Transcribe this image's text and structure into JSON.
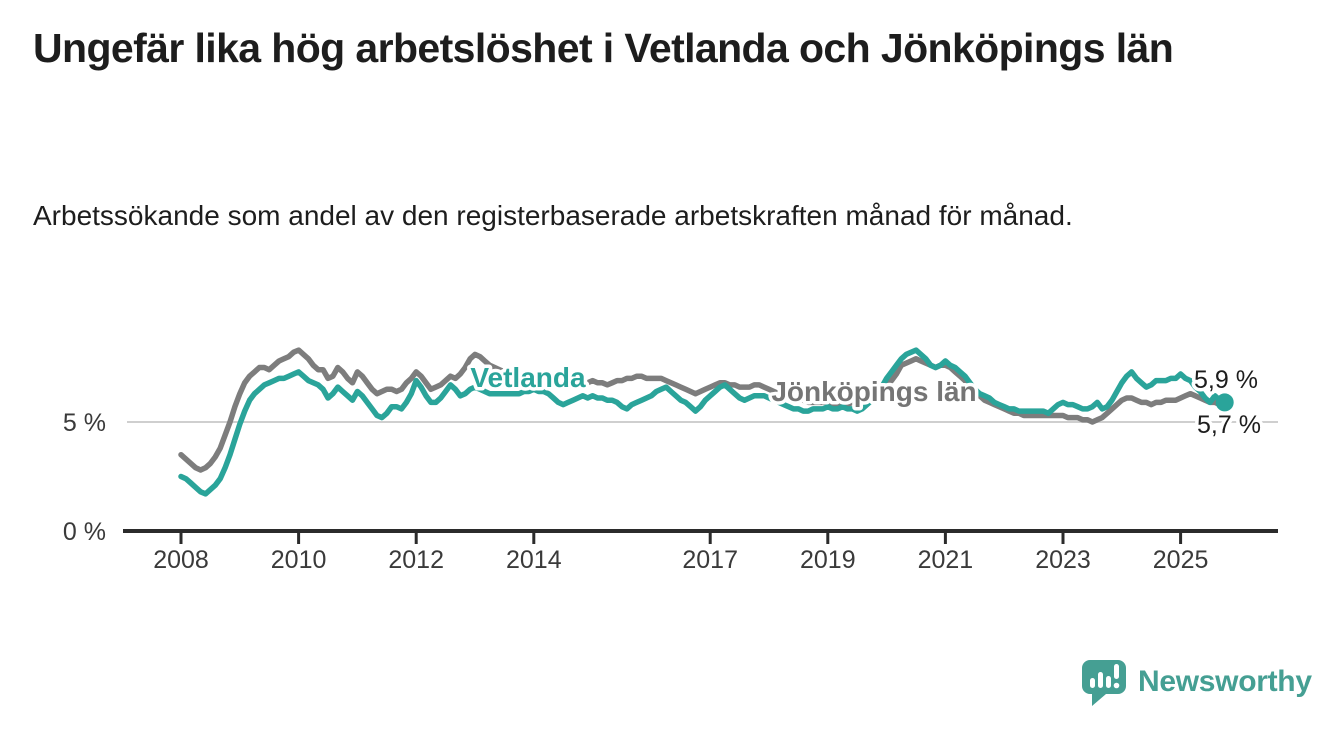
{
  "header": {
    "title": "Ungefär lika hög arbetslöshet i Vetlanda och Jönköpings län",
    "subtitle": "Arbetssökande som andel av den registerbaserade arbetskraften månad för månad."
  },
  "chart_data": {
    "type": "line",
    "frequency": "monthly",
    "x_start": "2008-01",
    "x_end": "2025-10",
    "ylim": [
      0,
      9.2
    ],
    "grid": "single horizontal gridline at 5 %",
    "legend_position": "inline labels on lines",
    "x_ticks": [
      {
        "label": "2008",
        "month_index": 0
      },
      {
        "label": "2010",
        "month_index": 24
      },
      {
        "label": "2012",
        "month_index": 48
      },
      {
        "label": "2014",
        "month_index": 72
      },
      {
        "label": "2017",
        "month_index": 108
      },
      {
        "label": "2019",
        "month_index": 132
      },
      {
        "label": "2021",
        "month_index": 156
      },
      {
        "label": "2023",
        "month_index": 180
      },
      {
        "label": "2025",
        "month_index": 204
      }
    ],
    "y_axis": {
      "ticks": [
        {
          "label": "0 %",
          "value": 0
        },
        {
          "label": "5 %",
          "value": 5
        }
      ],
      "gridline_value": 5
    },
    "series": [
      {
        "name": "Jönköpings län",
        "color": "#7d7d7d",
        "label_color": "#757575",
        "end_label": "5,7 %",
        "end_dot": false,
        "values": [
          3.5,
          3.3,
          3.1,
          2.9,
          2.8,
          2.9,
          3.1,
          3.4,
          3.8,
          4.4,
          5.0,
          5.7,
          6.3,
          6.8,
          7.1,
          7.3,
          7.5,
          7.5,
          7.4,
          7.6,
          7.8,
          7.9,
          8.0,
          8.2,
          8.3,
          8.1,
          7.9,
          7.6,
          7.4,
          7.4,
          7.0,
          7.1,
          7.5,
          7.3,
          7.0,
          6.8,
          7.3,
          7.1,
          6.8,
          6.5,
          6.3,
          6.4,
          6.5,
          6.5,
          6.4,
          6.5,
          6.8,
          7.0,
          7.3,
          7.1,
          6.8,
          6.5,
          6.6,
          6.7,
          6.9,
          7.1,
          7.0,
          7.2,
          7.5,
          7.9,
          8.1,
          8.0,
          7.8,
          7.6,
          7.5,
          7.4,
          7.3,
          7.3,
          7.2,
          7.2,
          7.1,
          7.1,
          7.2,
          7.1,
          7.0,
          6.9,
          6.8,
          6.8,
          6.7,
          6.8,
          6.9,
          6.9,
          6.8,
          6.8,
          6.9,
          6.8,
          6.8,
          6.7,
          6.8,
          6.9,
          6.9,
          7.0,
          7.0,
          7.1,
          7.1,
          7.0,
          7.0,
          7.0,
          7.0,
          6.9,
          6.8,
          6.7,
          6.6,
          6.5,
          6.4,
          6.3,
          6.4,
          6.5,
          6.6,
          6.7,
          6.8,
          6.8,
          6.7,
          6.7,
          6.6,
          6.6,
          6.6,
          6.7,
          6.7,
          6.6,
          6.5,
          6.4,
          6.3,
          6.2,
          6.1,
          6.1,
          6.0,
          6.0,
          5.9,
          5.9,
          5.9,
          5.9,
          5.9,
          5.8,
          5.8,
          5.8,
          5.8,
          5.9,
          5.9,
          6.0,
          6.1,
          6.2,
          6.3,
          6.5,
          6.7,
          6.9,
          7.2,
          7.6,
          7.7,
          7.8,
          7.9,
          7.8,
          7.7,
          7.6,
          7.5,
          7.6,
          7.6,
          7.5,
          7.3,
          7.1,
          6.9,
          6.6,
          6.4,
          6.2,
          6.0,
          5.9,
          5.8,
          5.7,
          5.6,
          5.5,
          5.4,
          5.4,
          5.3,
          5.3,
          5.3,
          5.3,
          5.3,
          5.3,
          5.3,
          5.3,
          5.3,
          5.2,
          5.2,
          5.2,
          5.1,
          5.1,
          5.0,
          5.1,
          5.2,
          5.4,
          5.6,
          5.8,
          6.0,
          6.1,
          6.1,
          6.0,
          5.9,
          5.9,
          5.8,
          5.9,
          5.9,
          6.0,
          6.0,
          6.0,
          6.1,
          6.2,
          6.3,
          6.2,
          6.1,
          6.0,
          5.9,
          5.9,
          5.8,
          5.7
        ]
      },
      {
        "name": "Vetlanda",
        "color": "#2aa49a",
        "label_color": "#2aa49a",
        "end_label": "5,9 %",
        "end_dot": true,
        "values": [
          2.5,
          2.4,
          2.2,
          2.0,
          1.8,
          1.7,
          1.9,
          2.1,
          2.4,
          2.9,
          3.5,
          4.2,
          4.9,
          5.5,
          6.0,
          6.3,
          6.5,
          6.7,
          6.8,
          6.9,
          7.0,
          7.0,
          7.1,
          7.2,
          7.3,
          7.1,
          6.9,
          6.8,
          6.7,
          6.5,
          6.1,
          6.3,
          6.6,
          6.4,
          6.2,
          6.0,
          6.4,
          6.2,
          5.9,
          5.6,
          5.3,
          5.2,
          5.4,
          5.7,
          5.7,
          5.6,
          5.9,
          6.3,
          6.9,
          6.6,
          6.2,
          5.9,
          5.9,
          6.1,
          6.4,
          6.7,
          6.5,
          6.2,
          6.3,
          6.5,
          6.6,
          6.5,
          6.4,
          6.3,
          6.3,
          6.3,
          6.3,
          6.3,
          6.3,
          6.3,
          6.4,
          6.4,
          6.5,
          6.4,
          6.4,
          6.3,
          6.1,
          5.9,
          5.8,
          5.9,
          6.0,
          6.1,
          6.2,
          6.1,
          6.2,
          6.1,
          6.1,
          6.0,
          6.0,
          5.9,
          5.7,
          5.6,
          5.8,
          5.9,
          6.0,
          6.1,
          6.2,
          6.4,
          6.5,
          6.6,
          6.4,
          6.2,
          6.0,
          5.9,
          5.7,
          5.5,
          5.7,
          6.0,
          6.2,
          6.4,
          6.6,
          6.7,
          6.5,
          6.3,
          6.1,
          6.0,
          6.1,
          6.2,
          6.2,
          6.2,
          6.1,
          6.0,
          5.9,
          5.8,
          5.7,
          5.6,
          5.6,
          5.5,
          5.5,
          5.6,
          5.6,
          5.6,
          5.7,
          5.6,
          5.6,
          5.7,
          5.6,
          5.6,
          5.5,
          5.6,
          5.8,
          6.0,
          6.3,
          6.6,
          7.0,
          7.3,
          7.6,
          7.9,
          8.1,
          8.2,
          8.3,
          8.1,
          7.9,
          7.6,
          7.5,
          7.6,
          7.8,
          7.6,
          7.5,
          7.3,
          7.1,
          6.8,
          6.5,
          6.3,
          6.2,
          6.1,
          5.9,
          5.8,
          5.7,
          5.6,
          5.6,
          5.5,
          5.5,
          5.5,
          5.5,
          5.5,
          5.5,
          5.4,
          5.6,
          5.8,
          5.9,
          5.8,
          5.8,
          5.7,
          5.6,
          5.6,
          5.7,
          5.9,
          5.6,
          5.7,
          6.0,
          6.4,
          6.8,
          7.1,
          7.3,
          7.0,
          6.8,
          6.6,
          6.7,
          6.9,
          6.9,
          6.9,
          7.0,
          7.0,
          7.2,
          7.0,
          6.9,
          6.6,
          6.4,
          6.1,
          5.9,
          6.2,
          6.0,
          5.9
        ]
      }
    ]
  },
  "colors": {
    "accent_teal": "#2aa49a",
    "line_gray": "#7d7d7d",
    "axis": "#2b2b2b",
    "gridline": "#cfcfcf",
    "text": "#1d1d1d"
  },
  "footer": {
    "brand": "Newsworthy",
    "logo_icon": "bar-chart-speech-bubble-icon",
    "brand_color": "#459f93"
  }
}
